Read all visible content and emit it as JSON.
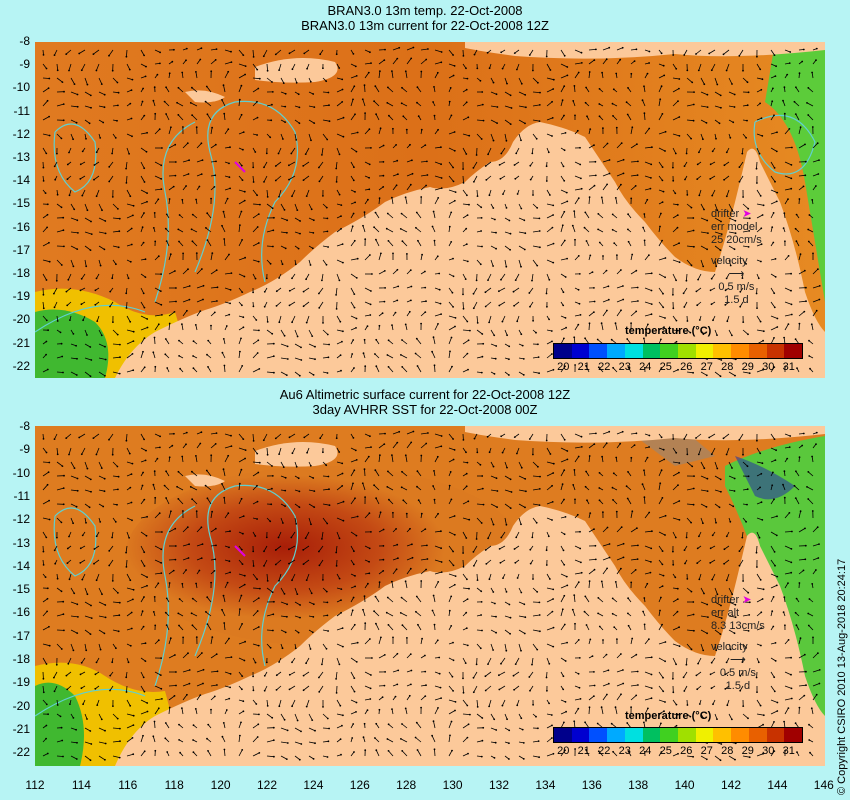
{
  "panel1": {
    "title_line1": "BRAN3.0 13m temp. 22-Oct-2008",
    "title_line2": "BRAN3.0 13m current for 22-Oct-2008 12Z",
    "legend": {
      "drifter": "drifter",
      "err_label": "err model",
      "err_value": "25 20cm/s",
      "velocity": "velocity",
      "velocity_scale": "0.5 m/s",
      "velocity_time": "1.5 d"
    }
  },
  "panel2": {
    "title_line1": "Au6 Altimetric surface current for 22-Oct-2008 12Z",
    "title_line2": "3day AVHRR SST for 22-Oct-2008 00Z",
    "legend": {
      "drifter": "drifter",
      "err_label": "err alt",
      "err_value": "8.3 13cm/s",
      "velocity": "velocity",
      "velocity_scale": "0.5 m/s",
      "velocity_time": "1.5 d"
    }
  },
  "colorbar": {
    "title": "temperature (°C)",
    "ticks": [
      "20",
      "21",
      "22",
      "23",
      "24",
      "25",
      "26",
      "27",
      "28",
      "29",
      "30",
      "31"
    ],
    "colors": [
      "#00008b",
      "#0000d0",
      "#0050ff",
      "#00aaff",
      "#00e0e0",
      "#00c060",
      "#40d020",
      "#a0e000",
      "#f0f000",
      "#ffc000",
      "#ff8c00",
      "#e86000",
      "#c83200",
      "#a00000"
    ]
  },
  "axes": {
    "y_labels": [
      "-8",
      "-9",
      "-10",
      "-11",
      "-12",
      "-13",
      "-14",
      "-15",
      "-16",
      "-17",
      "-18",
      "-19",
      "-20",
      "-21",
      "-22"
    ],
    "x_labels": [
      "112",
      "114",
      "116",
      "118",
      "120",
      "122",
      "124",
      "126",
      "128",
      "130",
      "132",
      "134",
      "136",
      "138",
      "140",
      "142",
      "144",
      "146"
    ]
  },
  "copyright": "© Copyright CSIRO 2010   13-Aug-2018 20:24:17",
  "colors": {
    "land": "#fcc99a",
    "ocean_warm": "#e0781c",
    "ocean_hot": "#b83a10",
    "ocean_cool": "#5cc83c",
    "contour": "#60d0d0",
    "background": "#b7f4f4",
    "drifter": "#e100e1"
  }
}
